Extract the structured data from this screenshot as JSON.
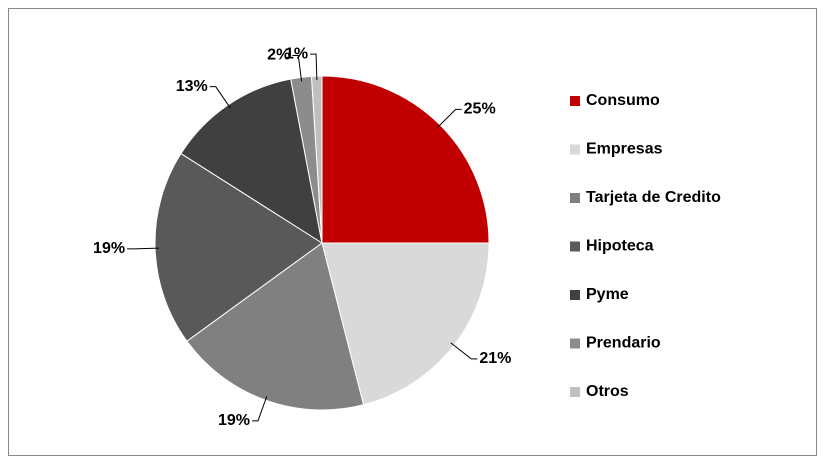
{
  "chart_data": {
    "type": "pie",
    "categories": [
      "Consumo",
      "Empresas",
      "Tarjeta de Credito",
      "Hipoteca",
      "Pyme",
      "Prendario",
      "Otros"
    ],
    "values": [
      25,
      21,
      19,
      19,
      13,
      2,
      1
    ],
    "value_labels": [
      "25%",
      "21%",
      "19%",
      "19%",
      "13%",
      "2%",
      "1%"
    ],
    "colors": [
      "#c00000",
      "#d9d9d9",
      "#808080",
      "#595959",
      "#404040",
      "#8c8c8c",
      "#bfbfbf"
    ],
    "legend": "right"
  }
}
